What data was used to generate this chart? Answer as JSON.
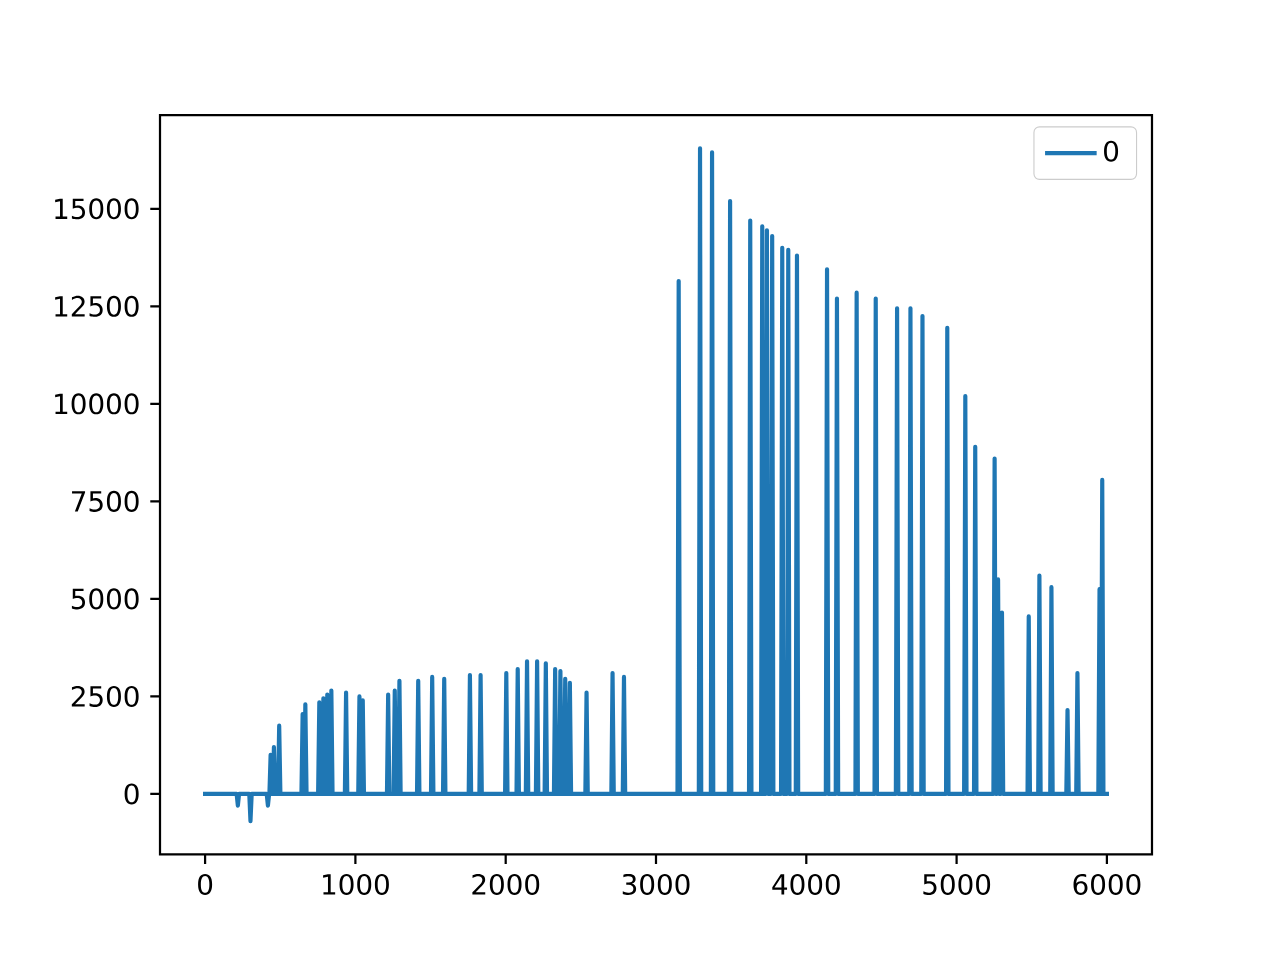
{
  "chart_data": {
    "type": "line",
    "legend": "top right",
    "xlim": [
      -300,
      6300
    ],
    "ylim": [
      -1550,
      17400
    ],
    "xticks": [
      0,
      1000,
      2000,
      3000,
      4000,
      5000,
      6000
    ],
    "yticks": [
      0,
      2500,
      5000,
      7500,
      10000,
      12500,
      15000
    ],
    "series": [
      {
        "name": "0",
        "color": "#1f77b4",
        "x": [
          0,
          210,
          218,
          226,
          294,
          302,
          310,
          410,
          418,
          426,
          428,
          436,
          444,
          450,
          458,
          466,
          485,
          493,
          501,
          641,
          649,
          657,
          659,
          667,
          675,
          752,
          760,
          768,
          779,
          787,
          795,
          805,
          813,
          821,
          832,
          840,
          848,
          930,
          938,
          946,
          1019,
          1027,
          1035,
          1041,
          1049,
          1057,
          1210,
          1218,
          1226,
          1254,
          1262,
          1270,
          1285,
          1293,
          1301,
          1410,
          1418,
          1426,
          1503,
          1511,
          1519,
          1583,
          1591,
          1599,
          1754,
          1762,
          1770,
          1825,
          1833,
          1841,
          1996,
          2004,
          2012,
          2072,
          2080,
          2088,
          2134,
          2142,
          2150,
          2201,
          2209,
          2217,
          2259,
          2267,
          2275,
          2321,
          2329,
          2337,
          2356,
          2364,
          2372,
          2388,
          2396,
          2404,
          2419,
          2427,
          2435,
          2530,
          2538,
          2546,
          2703,
          2711,
          2719,
          2779,
          2787,
          2795,
          3143,
          3151,
          3159,
          3285,
          3293,
          3301,
          3365,
          3373,
          3381,
          3485,
          3493,
          3501,
          3619,
          3627,
          3635,
          3699,
          3707,
          3715,
          3730,
          3738,
          3746,
          3765,
          3773,
          3781,
          3832,
          3840,
          3848,
          3872,
          3880,
          3888,
          3930,
          3938,
          3946,
          4130,
          4138,
          4146,
          4196,
          4204,
          4212,
          4327,
          4335,
          4343,
          4454,
          4462,
          4470,
          4596,
          4604,
          4612,
          4685,
          4693,
          4701,
          4765,
          4773,
          4781,
          4930,
          4938,
          4946,
          5050,
          5058,
          5066,
          5116,
          5124,
          5132,
          5245,
          5253,
          5261,
          5268,
          5276,
          5284,
          5294,
          5302,
          5310,
          5472,
          5480,
          5488,
          5543,
          5551,
          5559,
          5623,
          5631,
          5639,
          5730,
          5738,
          5746,
          5796,
          5804,
          5812,
          5943,
          5951,
          5959,
          5961,
          5969,
          5977,
          6000
        ],
        "values": [
          0,
          0,
          -300,
          0,
          0,
          -700,
          0,
          0,
          -300,
          0,
          0,
          1000,
          0,
          0,
          1200,
          0,
          0,
          1750,
          0,
          0,
          2050,
          0,
          0,
          2300,
          0,
          0,
          2350,
          0,
          0,
          2450,
          0,
          0,
          2550,
          0,
          0,
          2650,
          0,
          0,
          2600,
          0,
          0,
          2500,
          0,
          0,
          2400,
          0,
          0,
          2550,
          0,
          0,
          2650,
          0,
          0,
          2900,
          0,
          0,
          2900,
          0,
          0,
          3000,
          0,
          0,
          2950,
          0,
          0,
          3050,
          0,
          0,
          3050,
          0,
          0,
          3100,
          0,
          0,
          3200,
          0,
          0,
          3400,
          0,
          0,
          3400,
          0,
          0,
          3350,
          0,
          0,
          3200,
          0,
          0,
          3150,
          0,
          0,
          2950,
          0,
          0,
          2850,
          0,
          0,
          2600,
          0,
          0,
          3100,
          0,
          0,
          3000,
          0,
          0,
          13150,
          0,
          0,
          16550,
          0,
          0,
          16450,
          0,
          0,
          15200,
          0,
          0,
          14700,
          0,
          0,
          14550,
          0,
          0,
          14450,
          0,
          0,
          14300,
          0,
          0,
          14000,
          0,
          0,
          13950,
          0,
          0,
          13800,
          0,
          0,
          13450,
          0,
          0,
          12700,
          0,
          0,
          12850,
          0,
          0,
          12700,
          0,
          0,
          12450,
          0,
          0,
          12450,
          0,
          0,
          12250,
          0,
          0,
          11950,
          0,
          0,
          10200,
          0,
          0,
          8900,
          0,
          0,
          8600,
          0,
          0,
          5500,
          0,
          0,
          4650,
          0,
          0,
          4550,
          0,
          0,
          5600,
          0,
          0,
          5300,
          0,
          0,
          2150,
          0,
          0,
          3100,
          0,
          0,
          5250,
          0,
          0,
          8050,
          0,
          0
        ]
      }
    ]
  }
}
